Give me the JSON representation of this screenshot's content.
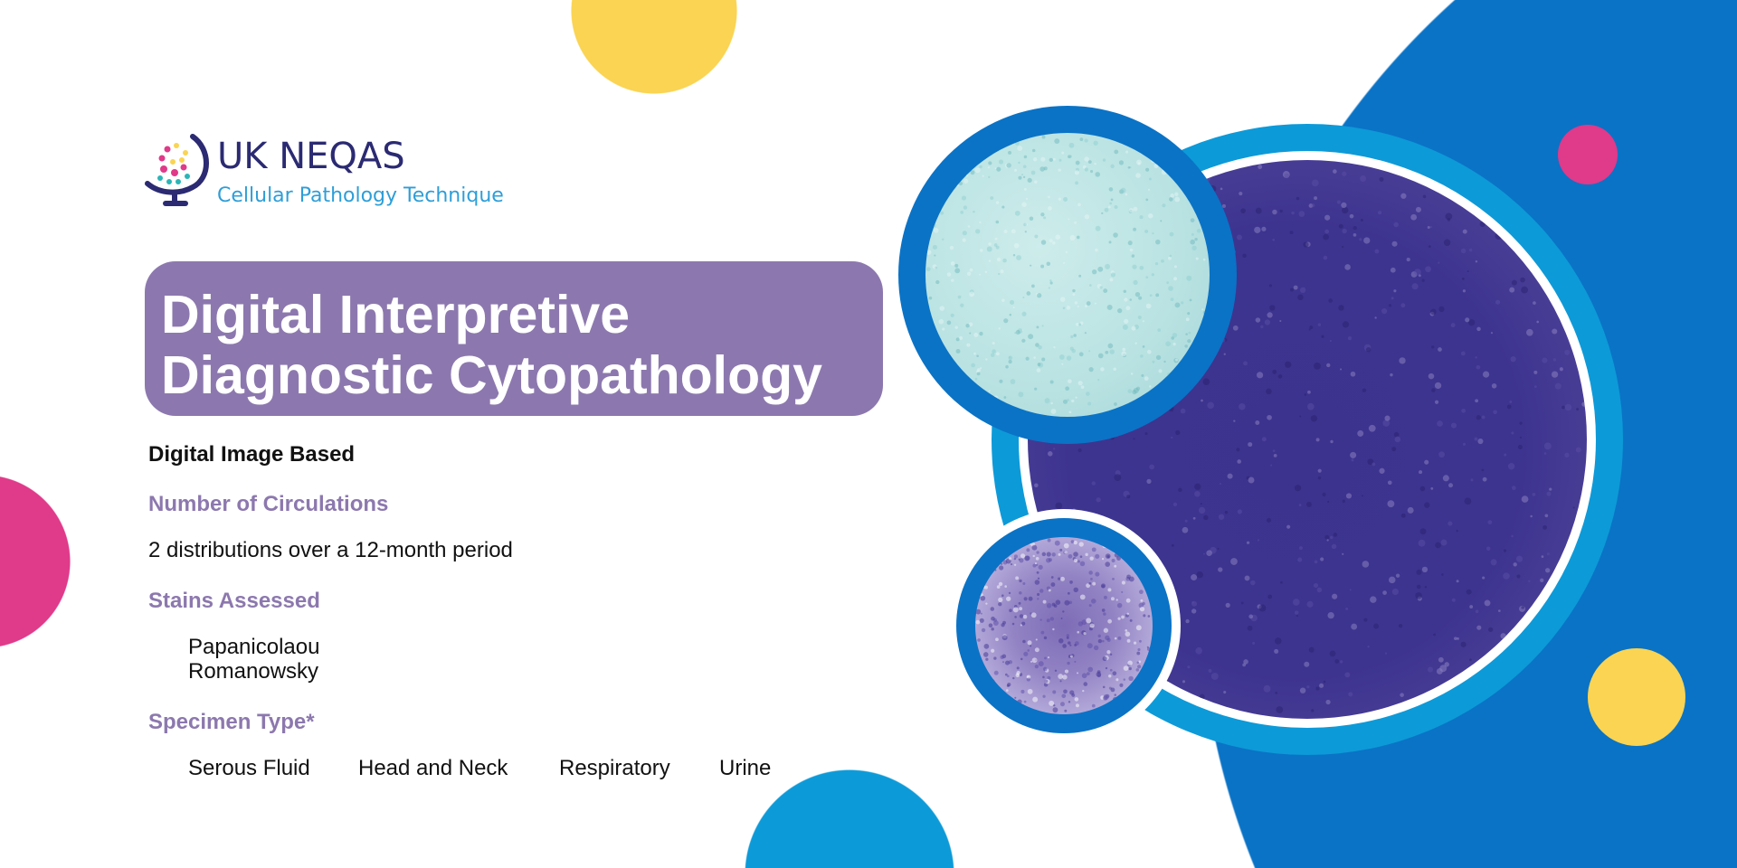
{
  "logo": {
    "name": "UK NEQAS",
    "subtitle": "Cellular Pathology Technique"
  },
  "title": {
    "line1": "Digital Interpretive",
    "line2": "Diagnostic Cytopathology"
  },
  "format": "Digital Image Based",
  "circulations": {
    "heading": "Number of Circulations",
    "text": "2 distributions over a 12-month period"
  },
  "stains": {
    "heading": "Stains Assessed",
    "items": [
      "Papanicolaou",
      "Romanowsky"
    ]
  },
  "specimen": {
    "heading": "Specimen Type*",
    "items": [
      "Serous Fluid",
      "Head and Neck",
      "Respiratory",
      "Urine"
    ]
  },
  "colors": {
    "purple": "#8c78ae",
    "dark_blue": "#0071c5",
    "light_blue": "#0d9ad8",
    "yellow": "#fad452",
    "pink": "#e03a8a",
    "navy": "#2b2a72"
  }
}
